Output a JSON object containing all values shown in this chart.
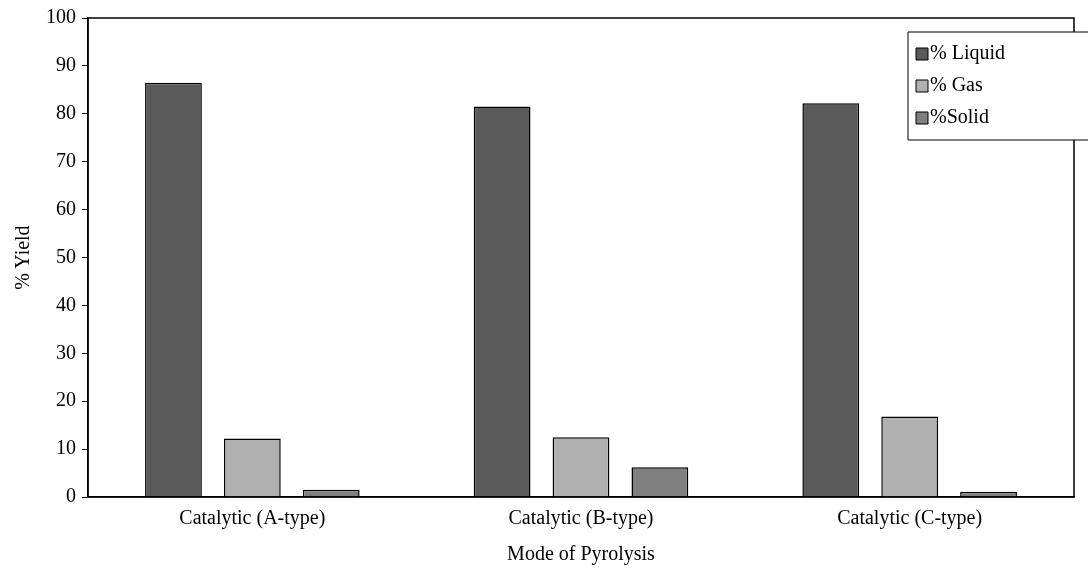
{
  "chart_data": {
    "type": "bar",
    "xlabel": "Mode of Pyrolysis",
    "ylabel": "% Yield",
    "categories": [
      "Catalytic (A-type)",
      "Catalytic (B-type)",
      "Catalytic (C-type)"
    ],
    "series": [
      {
        "name": "% Liquid",
        "color": "#5a5a5a",
        "values": [
          86.5,
          81.5,
          82.2
        ]
      },
      {
        "name": "% Gas",
        "color": "#b0b0b0",
        "values": [
          12.2,
          12.5,
          16.8
        ]
      },
      {
        "name": "%Solid",
        "color": "#808080",
        "values": [
          1.5,
          6.2,
          1.1
        ]
      }
    ],
    "ylim": [
      0,
      100
    ],
    "yticks": [
      0,
      10,
      20,
      30,
      40,
      50,
      60,
      70,
      80,
      90,
      100
    ],
    "grid": false,
    "legend": "top right"
  }
}
